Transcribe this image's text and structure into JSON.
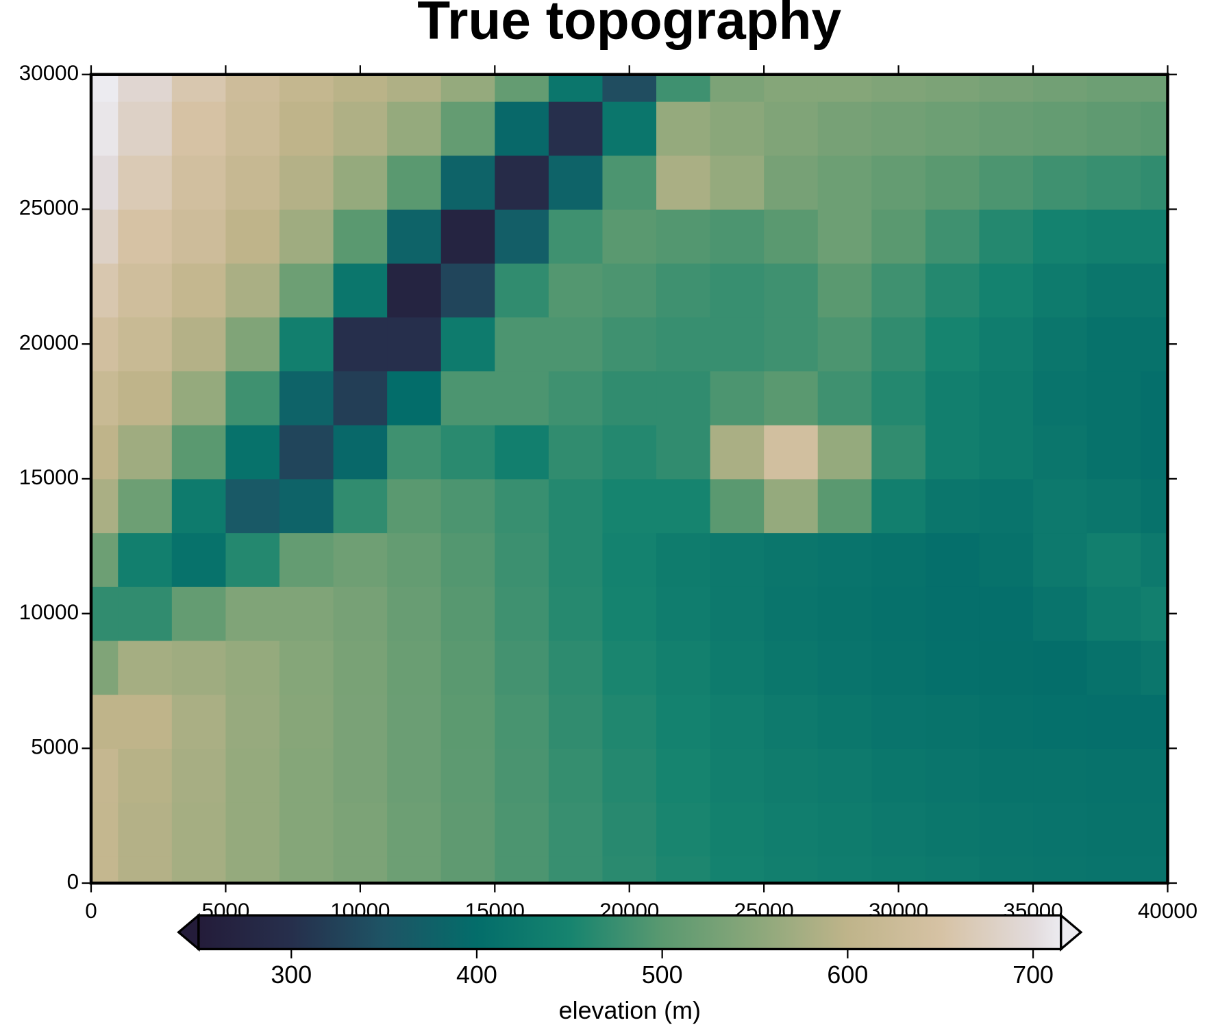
{
  "chart_data": {
    "type": "heatmap",
    "title": "True topography",
    "x": [
      0,
      2000,
      4000,
      6000,
      8000,
      10000,
      12000,
      14000,
      16000,
      18000,
      20000,
      22000,
      24000,
      26000,
      28000,
      30000,
      32000,
      34000,
      36000,
      38000,
      40000
    ],
    "y": [
      0,
      2000,
      4000,
      6000,
      8000,
      10000,
      12000,
      14000,
      16000,
      18000,
      20000,
      22000,
      24000,
      26000,
      28000,
      30000
    ],
    "z": [
      [
        610,
        590,
        575,
        560,
        545,
        535,
        520,
        505,
        490,
        475,
        465,
        455,
        445,
        440,
        435,
        430,
        425,
        420,
        418,
        415,
        415
      ],
      [
        610,
        590,
        575,
        560,
        545,
        535,
        520,
        505,
        490,
        475,
        463,
        452,
        443,
        437,
        432,
        427,
        422,
        418,
        415,
        413,
        413
      ],
      [
        612,
        592,
        577,
        560,
        545,
        533,
        518,
        503,
        488,
        473,
        460,
        450,
        440,
        433,
        428,
        422,
        418,
        414,
        412,
        410,
        410
      ],
      [
        600,
        600,
        580,
        562,
        547,
        533,
        518,
        502,
        487,
        470,
        457,
        446,
        436,
        428,
        422,
        416,
        412,
        408,
        406,
        405,
        405
      ],
      [
        540,
        575,
        570,
        560,
        545,
        532,
        517,
        500,
        484,
        467,
        453,
        441,
        430,
        422,
        415,
        410,
        406,
        404,
        403,
        410,
        420
      ],
      [
        470,
        470,
        510,
        540,
        540,
        530,
        515,
        498,
        480,
        462,
        448,
        435,
        425,
        418,
        412,
        408,
        405,
        405,
        415,
        430,
        440
      ],
      [
        520,
        440,
        410,
        460,
        510,
        522,
        510,
        495,
        478,
        460,
        445,
        432,
        425,
        420,
        415,
        410,
        405,
        410,
        425,
        440,
        425
      ],
      [
        580,
        520,
        430,
        360,
        380,
        470,
        500,
        490,
        475,
        460,
        450,
        450,
        500,
        560,
        500,
        440,
        420,
        415,
        425,
        420,
        410
      ],
      [
        600,
        570,
        500,
        410,
        330,
        390,
        480,
        465,
        440,
        470,
        460,
        470,
        580,
        640,
        560,
        470,
        440,
        430,
        420,
        410,
        405
      ],
      [
        620,
        600,
        560,
        480,
        380,
        320,
        400,
        490,
        490,
        480,
        470,
        470,
        490,
        500,
        480,
        460,
        440,
        430,
        415,
        410,
        405
      ],
      [
        640,
        620,
        590,
        540,
        440,
        300,
        300,
        430,
        490,
        490,
        480,
        475,
        475,
        480,
        490,
        470,
        450,
        435,
        420,
        410,
        410
      ],
      [
        660,
        635,
        610,
        580,
        520,
        420,
        270,
        330,
        470,
        495,
        490,
        480,
        475,
        480,
        500,
        480,
        460,
        445,
        430,
        420,
        420
      ],
      [
        680,
        650,
        630,
        600,
        570,
        500,
        380,
        270,
        370,
        480,
        500,
        495,
        490,
        500,
        520,
        500,
        480,
        460,
        445,
        440,
        440
      ],
      [
        700,
        665,
        640,
        615,
        590,
        560,
        500,
        380,
        290,
        380,
        490,
        580,
        560,
        530,
        520,
        510,
        500,
        490,
        480,
        475,
        470
      ],
      [
        710,
        680,
        650,
        625,
        600,
        585,
        560,
        510,
        390,
        300,
        420,
        560,
        550,
        540,
        530,
        525,
        520,
        515,
        510,
        505,
        500
      ],
      [
        720,
        690,
        660,
        630,
        610,
        595,
        585,
        560,
        510,
        420,
        340,
        480,
        535,
        545,
        545,
        540,
        535,
        530,
        525,
        520,
        520
      ]
    ],
    "xlim": [
      0,
      40000
    ],
    "ylim": [
      0,
      30000
    ],
    "xticks": [
      0,
      5000,
      10000,
      15000,
      20000,
      25000,
      30000,
      35000,
      40000
    ],
    "yticks": [
      0,
      5000,
      10000,
      15000,
      20000,
      25000,
      30000
    ],
    "colorbar": {
      "label": "elevation (m)",
      "clim": [
        250,
        715
      ],
      "ticks": [
        300,
        400,
        500,
        600,
        700
      ]
    },
    "colormap": [
      {
        "value": 250,
        "color": "#241c3a"
      },
      {
        "value": 300,
        "color": "#262f4c"
      },
      {
        "value": 350,
        "color": "#1e5465"
      },
      {
        "value": 400,
        "color": "#036d6a"
      },
      {
        "value": 450,
        "color": "#16846f"
      },
      {
        "value": 500,
        "color": "#5a9970"
      },
      {
        "value": 550,
        "color": "#8aa77a"
      },
      {
        "value": 600,
        "color": "#bfb48a"
      },
      {
        "value": 650,
        "color": "#d6c2a4"
      },
      {
        "value": 700,
        "color": "#e2dbdc"
      },
      {
        "value": 715,
        "color": "#ecebf0"
      }
    ]
  }
}
